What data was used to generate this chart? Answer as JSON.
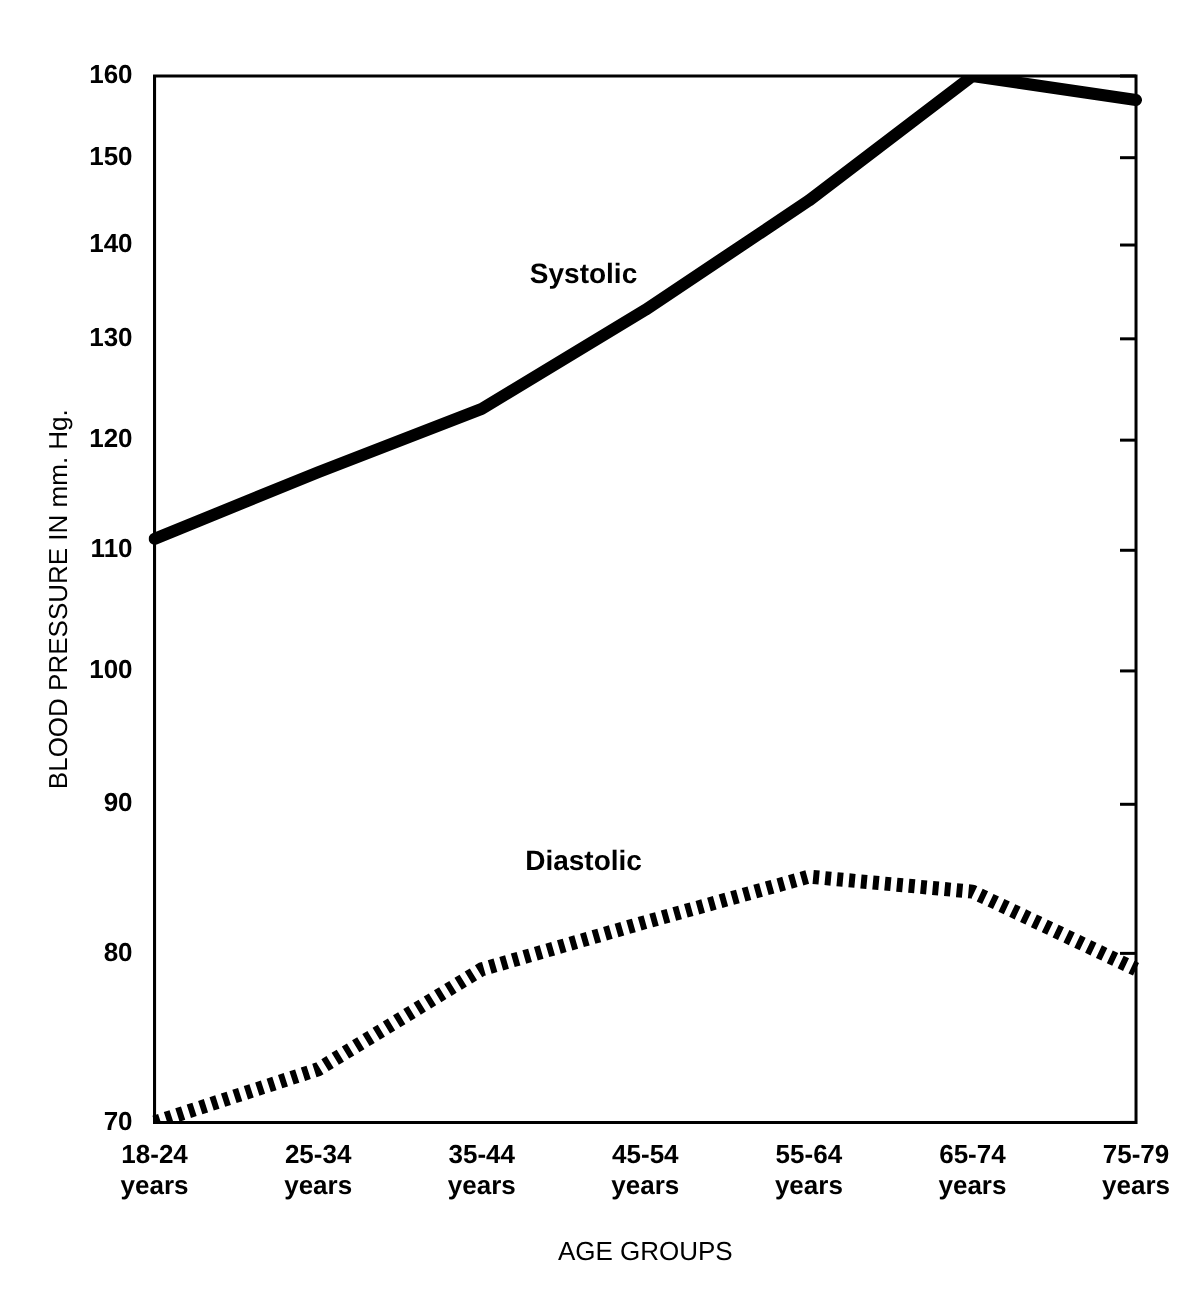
{
  "chart_data": {
    "type": "line",
    "xlabel": "AGE GROUPS",
    "ylabel": "BLOOD PRESSURE IN mm. Hg.",
    "categories": [
      "18-24 years",
      "25-34 years",
      "35-44 years",
      "45-54 years",
      "55-64 years",
      "65-74 years",
      "75-79 years"
    ],
    "series": [
      {
        "name": "Systolic",
        "color": "#000000",
        "line_style": "solid",
        "values": [
          111,
          117,
          123,
          133,
          145,
          160,
          157
        ]
      },
      {
        "name": "Diastolic",
        "color": "#000000",
        "line_style": "dotted",
        "values": [
          70,
          73,
          79,
          82,
          85,
          84,
          79
        ]
      }
    ],
    "log": "y",
    "ylim": [
      70,
      160
    ],
    "yticks": [
      70,
      80,
      90,
      100,
      110,
      120,
      130,
      140,
      150,
      160
    ],
    "grid": false,
    "legend": false,
    "marker": "none"
  }
}
